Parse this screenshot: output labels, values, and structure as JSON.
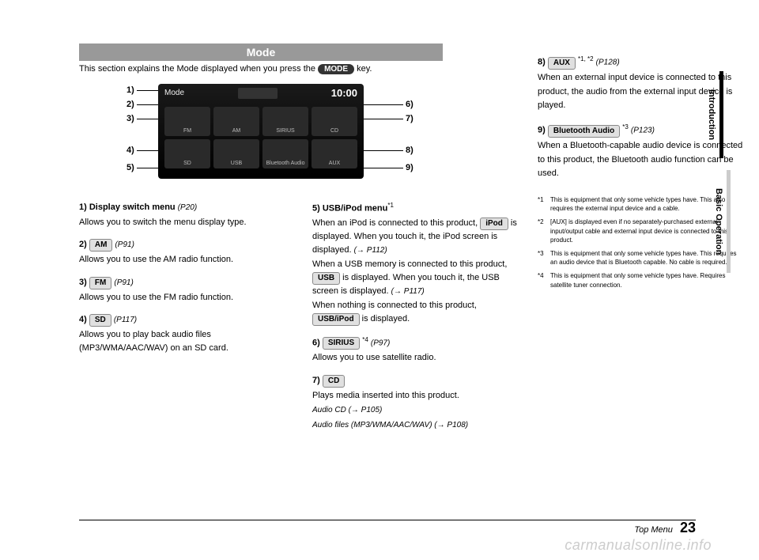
{
  "header": {
    "title": "Mode"
  },
  "intro": {
    "prefix": "This section explains the Mode displayed when you press the ",
    "key": "MODE",
    "suffix": " key."
  },
  "screen": {
    "title": "Mode",
    "time": "10:00",
    "cells": [
      "FM",
      "AM",
      "SIRIUS",
      "CD",
      "SD",
      "USB",
      "Bluetooth Audio",
      "AUX"
    ]
  },
  "callouts": {
    "left": [
      "1)",
      "2)",
      "3)",
      "4)",
      "5)"
    ],
    "right": [
      "6)",
      "7)",
      "8)",
      "9)"
    ]
  },
  "col1": [
    {
      "num": "1)",
      "title": "Display switch menu",
      "ref": "(P20)",
      "desc": "Allows you to switch the menu display type."
    },
    {
      "num": "2)",
      "btn": "AM",
      "ref": "(P91)",
      "desc": "Allows you to use the AM radio function."
    },
    {
      "num": "3)",
      "btn": "FM",
      "ref": "(P91)",
      "desc": "Allows you to use the FM radio function."
    },
    {
      "num": "4)",
      "btn": "SD",
      "ref": "(P117)",
      "desc": "Allows you to play back audio files (MP3/WMA/AAC/WAV) on an SD card."
    }
  ],
  "col2": [
    {
      "num": "5)",
      "title": "USB/iPod menu",
      "sup": "*1",
      "lines": [
        "When an iPod is connected to this product, |iPod| is displayed. When you touch it, the iPod screen is displayed. (→ P112)",
        "When a USB memory is connected to this product, |USB| is displayed. When you touch it, the USB screen is displayed. (→ P117)",
        "When nothing is connected to this product, |USB/iPod| is displayed."
      ]
    },
    {
      "num": "6)",
      "btn": "SIRIUS",
      "sup": "*4",
      "ref": "(P97)",
      "desc": "Allows you to use satellite radio."
    },
    {
      "num": "7)",
      "btn": "CD",
      "desc": "Plays media inserted into this product.",
      "extra": [
        "Audio CD (→ P105)",
        "Audio files (MP3/WMA/AAC/WAV) (→ P108)"
      ]
    }
  ],
  "col3": [
    {
      "num": "8)",
      "btn": "AUX",
      "sup": "*1, *2",
      "ref": "(P128)",
      "desc": "When an external input device is connected to this product, the audio from the external input device is played."
    },
    {
      "num": "9)",
      "btn": "Bluetooth Audio",
      "sup": "*3",
      "ref": "(P123)",
      "desc": "When a Bluetooth-capable audio device is connected to this product, the Bluetooth audio function can be used."
    }
  ],
  "footnotes": [
    {
      "n": "*1",
      "t": "This is equipment that only some vehicle types have. This also requires the external input device and a cable."
    },
    {
      "n": "*2",
      "t": "[AUX] is displayed even if no separately-purchased external input/output cable and external input device is connected to this product."
    },
    {
      "n": "*3",
      "t": "This is equipment that only some vehicle types have. This requires an audio device that is Bluetooth capable. No cable is required."
    },
    {
      "n": "*4",
      "t": "This is equipment that only some vehicle types have. Requires satellite tuner connection."
    }
  ],
  "sidetabs": {
    "intro": "Introduction",
    "basic": "Basic Operation"
  },
  "footer": {
    "section": "Top Menu",
    "page": "23"
  },
  "watermark": "carmanualsonline.info"
}
